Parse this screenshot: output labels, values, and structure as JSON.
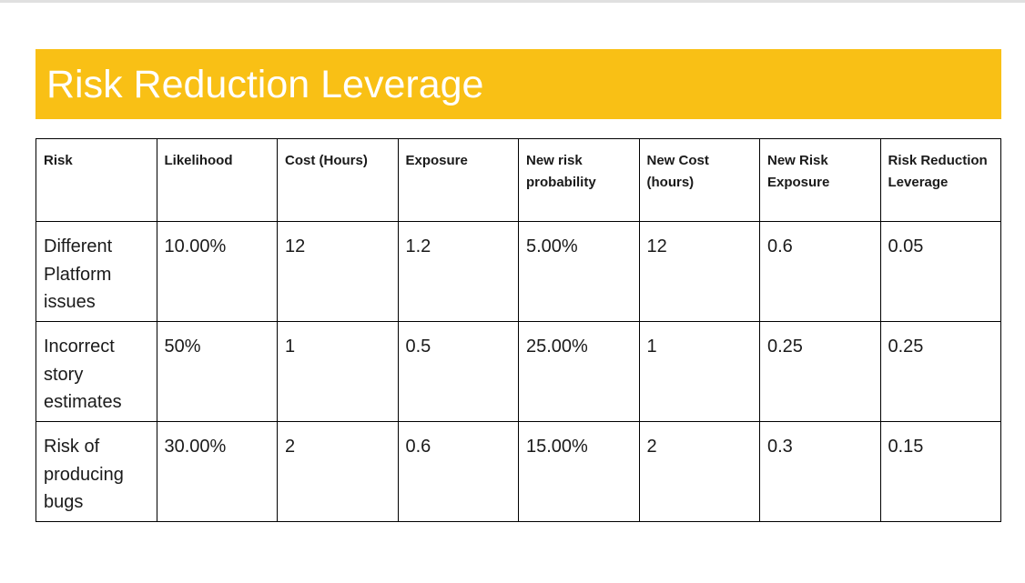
{
  "slide": {
    "title": "Risk Reduction Leverage"
  },
  "table": {
    "headers": [
      "Risk",
      "Likelihood",
      "Cost (Hours)",
      "Exposure",
      "New risk probability",
      "New Cost (hours)",
      "New Risk Exposure",
      "Risk Reduction Leverage"
    ],
    "rows": [
      [
        "Different Platform issues",
        "10.00%",
        "12",
        "1.2",
        "5.00%",
        "12",
        "0.6",
        "0.05"
      ],
      [
        "Incorrect story estimates",
        "50%",
        "1",
        "0.5",
        "25.00%",
        "1",
        "0.25",
        "0.25"
      ],
      [
        "Risk of producing bugs",
        "30.00%",
        "2",
        "0.6",
        "15.00%",
        "2",
        "0.3",
        "0.15"
      ]
    ]
  },
  "colors": {
    "title_bar": "#f9c015",
    "title_text": "#ffffff",
    "border": "#000000"
  }
}
